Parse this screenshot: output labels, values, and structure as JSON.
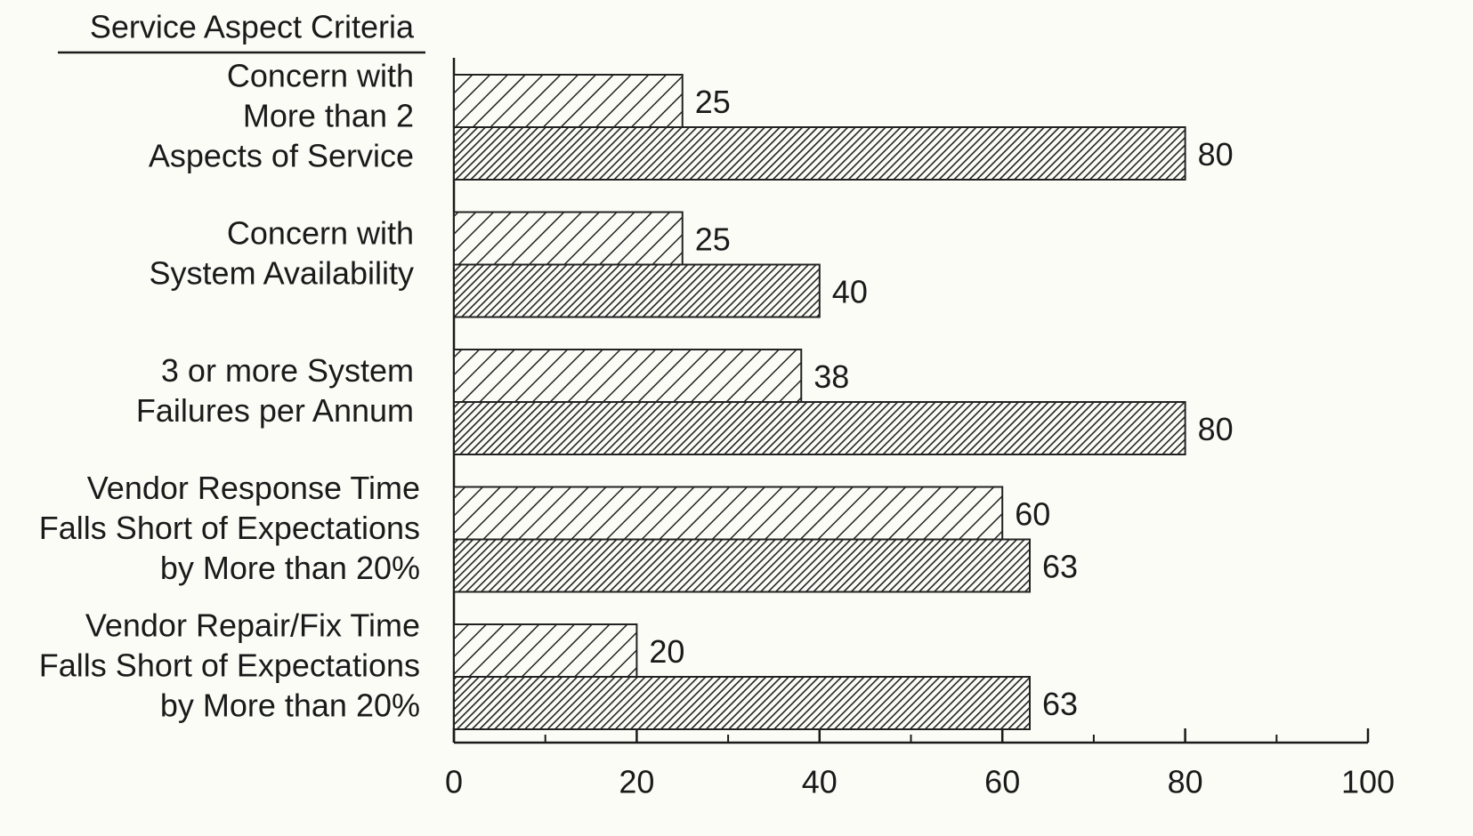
{
  "chart_data": {
    "type": "bar",
    "orientation": "horizontal",
    "y_label": "Service Aspect Criteria",
    "categories": [
      [
        "Concern with",
        "More than 2",
        "Aspects of Service"
      ],
      [
        "Concern with",
        "System Availability"
      ],
      [
        "3 or more System",
        "Failures per Annum"
      ],
      [
        "Vendor Response Time",
        "Falls Short of Expectations",
        "by More than 20%"
      ],
      [
        "Vendor Repair/Fix Time",
        "Falls Short of Expectations",
        "by More than 20%"
      ]
    ],
    "series": [
      {
        "pattern": "sparse-hatch",
        "color": "#222222",
        "values": [
          25,
          25,
          38,
          60,
          20
        ]
      },
      {
        "pattern": "dense-hatch",
        "color": "#222222",
        "values": [
          80,
          40,
          80,
          63,
          63
        ]
      }
    ],
    "xlim": [
      0,
      100
    ],
    "xticks": [
      0,
      20,
      40,
      60,
      80,
      100
    ],
    "xminor_ticks": [
      10,
      30,
      50,
      70,
      90
    ],
    "grid": false
  }
}
